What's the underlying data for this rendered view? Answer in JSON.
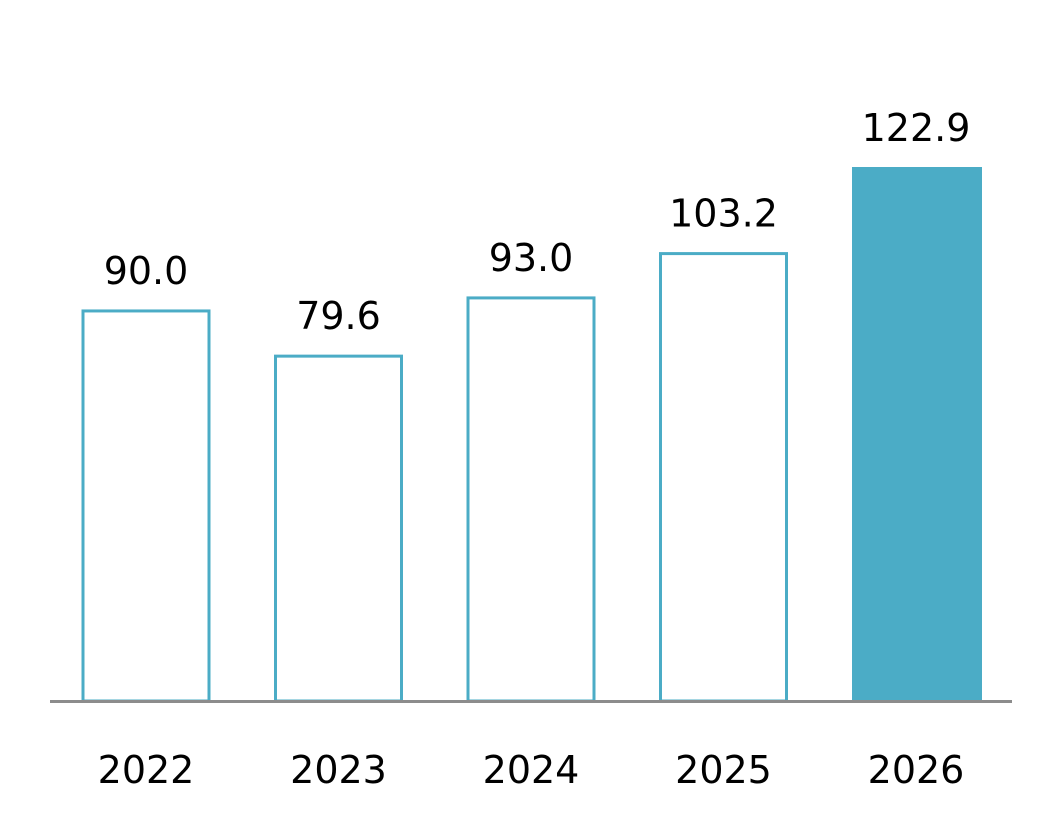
{
  "chart_data": {
    "type": "bar",
    "categories": [
      "2022",
      "2023",
      "2024",
      "2025",
      "2026"
    ],
    "values": [
      90.0,
      79.6,
      93.0,
      103.2,
      122.9
    ],
    "value_labels": [
      "90.0",
      "79.6",
      "93.0",
      "103.2",
      "122.9"
    ],
    "title": "",
    "xlabel": "",
    "ylabel": "",
    "ylim": [
      0,
      122.9
    ],
    "grid": false,
    "legend": "none",
    "highlight_index": 4,
    "colors": {
      "accent": "#4BACC6",
      "axis": "#8C8C8C",
      "outline_fill": "#FFFFFF"
    }
  }
}
